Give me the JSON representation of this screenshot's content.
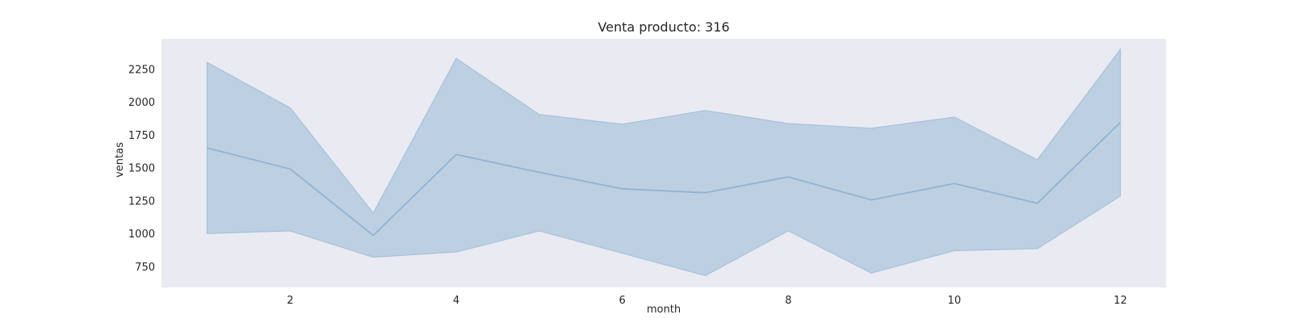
{
  "colors": {
    "plot_background": "#eaeaf2",
    "page_background": "#ffffff",
    "line": "#8fb3d4",
    "band_fill": "#bdd0e2",
    "band_edge": "#a6c2dc",
    "text": "#262626"
  },
  "chart_data": {
    "type": "line",
    "title": "Venta producto: 316",
    "xlabel": "month",
    "ylabel": "ventas",
    "xlim": [
      0.45,
      12.55
    ],
    "ylim": [
      590,
      2480
    ],
    "xticks": [
      2,
      4,
      6,
      8,
      10,
      12
    ],
    "yticks": [
      750,
      1000,
      1250,
      1500,
      1750,
      2000,
      2250
    ],
    "grid": false,
    "legend": "none",
    "x": [
      1,
      2,
      3,
      4,
      5,
      6,
      7,
      8,
      9,
      10,
      11,
      12
    ],
    "series": [
      {
        "values": [
          1650,
          1490,
          985,
          1600,
          1465,
          1340,
          1310,
          1430,
          1255,
          1380,
          1230,
          1845
        ],
        "band_upper": [
          2300,
          1955,
          1155,
          2330,
          1905,
          1830,
          1935,
          1835,
          1800,
          1885,
          1560,
          2400
        ],
        "band_lower": [
          1000,
          1020,
          820,
          860,
          1020,
          850,
          680,
          1020,
          700,
          870,
          885,
          1285
        ]
      }
    ]
  }
}
